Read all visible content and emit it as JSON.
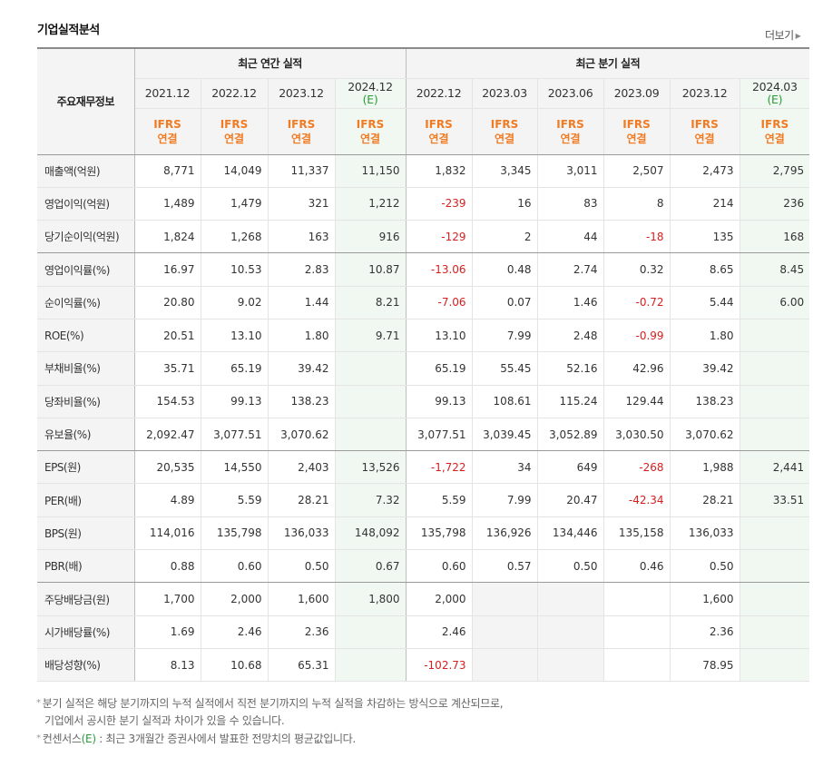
{
  "title": "기업실적분석",
  "more_label": "더보기",
  "table": {
    "row_header_label": "주요재무정보",
    "annual_group_label": "최근 연간 실적",
    "quarter_group_label": "최근 분기 실적",
    "periods": [
      {
        "label": "2021.12",
        "est": ""
      },
      {
        "label": "2022.12",
        "est": ""
      },
      {
        "label": "2023.12",
        "est": ""
      },
      {
        "label": "2024.12",
        "est": "(E)"
      },
      {
        "label": "2022.12",
        "est": ""
      },
      {
        "label": "2023.03",
        "est": ""
      },
      {
        "label": "2023.06",
        "est": ""
      },
      {
        "label": "2023.09",
        "est": ""
      },
      {
        "label": "2023.12",
        "est": ""
      },
      {
        "label": "2024.03",
        "est": "(E)"
      }
    ],
    "ifrs_line1": "IFRS",
    "ifrs_line2": "연결",
    "rows": [
      {
        "label": "매출액(억원)",
        "values": [
          "8,771",
          "14,049",
          "11,337",
          "11,150",
          "1,832",
          "3,345",
          "3,011",
          "2,507",
          "2,473",
          "2,795"
        ]
      },
      {
        "label": "영업이익(억원)",
        "values": [
          "1,489",
          "1,479",
          "321",
          "1,212",
          "-239",
          "16",
          "83",
          "8",
          "214",
          "236"
        ]
      },
      {
        "label": "당기순이익(억원)",
        "values": [
          "1,824",
          "1,268",
          "163",
          "916",
          "-129",
          "2",
          "44",
          "-18",
          "135",
          "168"
        ]
      },
      {
        "label": "영업이익률(%)",
        "values": [
          "16.97",
          "10.53",
          "2.83",
          "10.87",
          "-13.06",
          "0.48",
          "2.74",
          "0.32",
          "8.65",
          "8.45"
        ]
      },
      {
        "label": "순이익률(%)",
        "values": [
          "20.80",
          "9.02",
          "1.44",
          "8.21",
          "-7.06",
          "0.07",
          "1.46",
          "-0.72",
          "5.44",
          "6.00"
        ]
      },
      {
        "label": "ROE(%)",
        "values": [
          "20.51",
          "13.10",
          "1.80",
          "9.71",
          "13.10",
          "7.99",
          "2.48",
          "-0.99",
          "1.80",
          ""
        ]
      },
      {
        "label": "부채비율(%)",
        "values": [
          "35.71",
          "65.19",
          "39.42",
          "",
          "65.19",
          "55.45",
          "52.16",
          "42.96",
          "39.42",
          ""
        ]
      },
      {
        "label": "당좌비율(%)",
        "values": [
          "154.53",
          "99.13",
          "138.23",
          "",
          "99.13",
          "108.61",
          "115.24",
          "129.44",
          "138.23",
          ""
        ]
      },
      {
        "label": "유보율(%)",
        "values": [
          "2,092.47",
          "3,077.51",
          "3,070.62",
          "",
          "3,077.51",
          "3,039.45",
          "3,052.89",
          "3,030.50",
          "3,070.62",
          ""
        ]
      },
      {
        "label": "EPS(원)",
        "values": [
          "20,535",
          "14,550",
          "2,403",
          "13,526",
          "-1,722",
          "34",
          "649",
          "-268",
          "1,988",
          "2,441"
        ]
      },
      {
        "label": "PER(배)",
        "values": [
          "4.89",
          "5.59",
          "28.21",
          "7.32",
          "5.59",
          "7.99",
          "20.47",
          "-42.34",
          "28.21",
          "33.51"
        ]
      },
      {
        "label": "BPS(원)",
        "values": [
          "114,016",
          "135,798",
          "136,033",
          "148,092",
          "135,798",
          "136,926",
          "134,446",
          "135,158",
          "136,033",
          ""
        ]
      },
      {
        "label": "PBR(배)",
        "values": [
          "0.88",
          "0.60",
          "0.50",
          "0.67",
          "0.60",
          "0.57",
          "0.50",
          "0.46",
          "0.50",
          ""
        ]
      },
      {
        "label": "주당배당금(원)",
        "values": [
          "1,700",
          "2,000",
          "1,600",
          "1,800",
          "2,000",
          "",
          "",
          "",
          "1,600",
          ""
        ]
      },
      {
        "label": "시가배당률(%)",
        "values": [
          "1.69",
          "2.46",
          "2.36",
          "",
          "2.46",
          "",
          "",
          "",
          "2.36",
          ""
        ]
      },
      {
        "label": "배당성향(%)",
        "values": [
          "8.13",
          "10.68",
          "65.31",
          "",
          "-102.73",
          "",
          "",
          "",
          "78.95",
          ""
        ]
      }
    ]
  },
  "notes": {
    "line1": "분기 실적은 해당 분기까지의 누적 실적에서 직전 분기까지의 누적 실적을 차감하는 방식으로 계산되므로,",
    "line2": "기업에서 공시한 분기 실적과 차이가 있을 수 있습니다.",
    "line3_prefix": "컨센서스",
    "line3_e": "(E)",
    "line3_suffix": " : 최근 3개월간 증권사에서 발표한 전망치의 평균값입니다."
  }
}
